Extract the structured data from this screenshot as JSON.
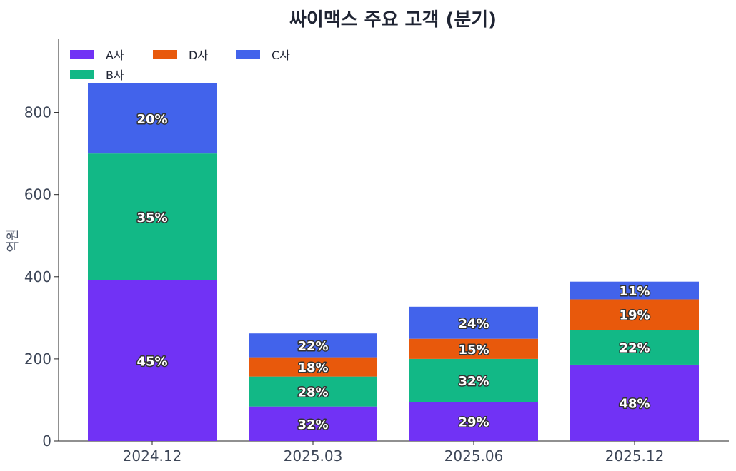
{
  "chart_data": {
    "type": "bar",
    "stacked": true,
    "title": "싸이맥스 주요 고객 (분기)",
    "xlabel": "",
    "ylabel": "억원",
    "ylim": [
      0,
      980
    ],
    "yticks": [
      0,
      200,
      400,
      600,
      800
    ],
    "categories": [
      "2024.12",
      "2025.03",
      "2025.06",
      "2025.12"
    ],
    "series": [
      {
        "name": "A사",
        "color": "#7132f5",
        "values": [
          391,
          84,
          95,
          186
        ],
        "labels": [
          "45%",
          "32%",
          "29%",
          "48%"
        ]
      },
      {
        "name": "B사",
        "color": "#12b886",
        "values": [
          309,
          73,
          105,
          85
        ],
        "labels": [
          "35%",
          "28%",
          "32%",
          "22%"
        ]
      },
      {
        "name": "D사",
        "color": "#e8590c",
        "values": [
          0,
          47,
          49,
          74
        ],
        "labels": [
          "",
          "18%",
          "15%",
          "19%"
        ]
      },
      {
        "name": "C사",
        "color": "#4263eb",
        "values": [
          171,
          58,
          78,
          43
        ],
        "labels": [
          "20%",
          "22%",
          "24%",
          "11%"
        ]
      }
    ],
    "legend": {
      "placement": "top-left",
      "order": [
        "A사",
        "D사",
        "C사",
        "B사"
      ]
    }
  }
}
